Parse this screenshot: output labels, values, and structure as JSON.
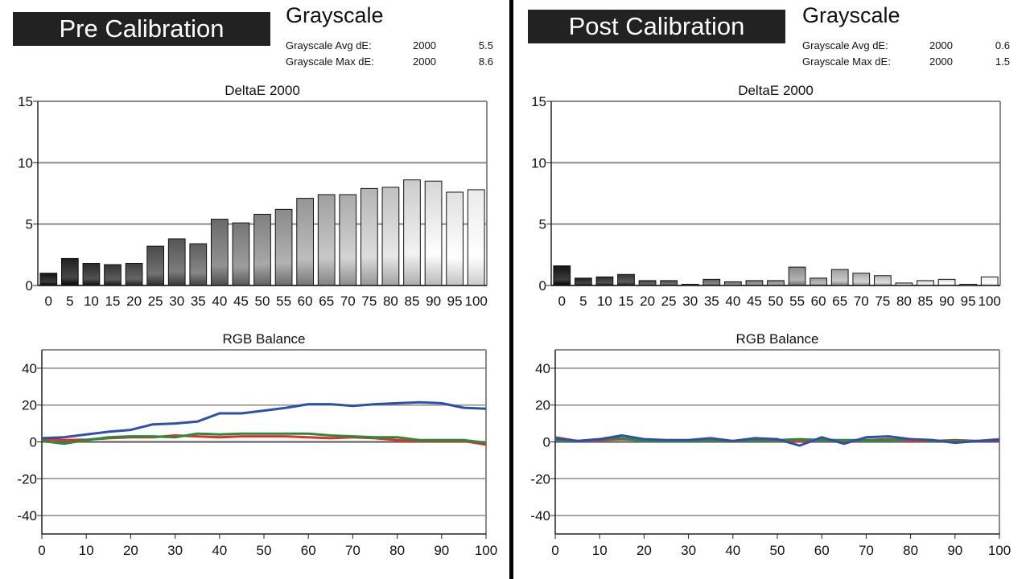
{
  "panels": [
    {
      "banner": "Pre Calibration",
      "stats_title": "Grayscale",
      "stats": [
        {
          "label": "Grayscale Avg dE:",
          "standard": "2000",
          "value": "5.5"
        },
        {
          "label": "Grayscale Max dE:",
          "standard": "2000",
          "value": "8.6"
        }
      ]
    },
    {
      "banner": "Post Calibration",
      "stats_title": "Grayscale",
      "stats": [
        {
          "label": "Grayscale Avg dE:",
          "standard": "2000",
          "value": "0.6"
        },
        {
          "label": "Grayscale Max dE:",
          "standard": "2000",
          "value": "1.5"
        }
      ]
    }
  ],
  "colors": {
    "red": "#e0302a",
    "green": "#2b8a3c",
    "blue": "#2f4fa8",
    "frame": "#8a8a8a",
    "grid": "#8a8a8a"
  },
  "chart_data": [
    {
      "id": "pre-deltae",
      "type": "bar",
      "title": "DeltaE 2000",
      "categories": [
        "0",
        "5",
        "10",
        "15",
        "20",
        "25",
        "30",
        "35",
        "40",
        "45",
        "50",
        "55",
        "60",
        "65",
        "70",
        "75",
        "80",
        "85",
        "90",
        "95",
        "100"
      ],
      "values": [
        1.0,
        2.2,
        1.8,
        1.7,
        1.8,
        3.2,
        3.8,
        3.4,
        5.4,
        5.1,
        5.8,
        6.2,
        7.1,
        7.4,
        7.4,
        7.9,
        8.0,
        8.6,
        8.5,
        7.6,
        7.8
      ],
      "ylim": [
        0,
        15
      ],
      "yticks": [
        0,
        5,
        10,
        15
      ],
      "grid": true
    },
    {
      "id": "post-deltae",
      "type": "bar",
      "title": "DeltaE 2000",
      "categories": [
        "0",
        "5",
        "10",
        "15",
        "20",
        "25",
        "30",
        "35",
        "40",
        "45",
        "50",
        "55",
        "60",
        "65",
        "70",
        "75",
        "80",
        "85",
        "90",
        "95",
        "100"
      ],
      "values": [
        1.6,
        0.6,
        0.7,
        0.9,
        0.4,
        0.4,
        0.1,
        0.5,
        0.3,
        0.4,
        0.4,
        1.5,
        0.6,
        1.3,
        1.0,
        0.8,
        0.2,
        0.4,
        0.5,
        0.1,
        0.7
      ],
      "ylim": [
        0,
        15
      ],
      "yticks": [
        0,
        5,
        10,
        15
      ],
      "grid": true
    },
    {
      "id": "pre-rgb",
      "type": "line",
      "title": "RGB Balance",
      "x": [
        0,
        5,
        10,
        15,
        20,
        25,
        30,
        35,
        40,
        45,
        50,
        55,
        60,
        65,
        70,
        75,
        80,
        85,
        90,
        95,
        100
      ],
      "xticks": [
        0,
        10,
        20,
        30,
        40,
        50,
        60,
        70,
        80,
        90,
        100
      ],
      "yticks": [
        -40,
        -20,
        0,
        20,
        40
      ],
      "ylim": [
        -50,
        50
      ],
      "grid": true,
      "series": [
        {
          "color": "red",
          "values": [
            1.5,
            1.0,
            1.2,
            2.0,
            2.5,
            2.5,
            3.5,
            3.0,
            2.5,
            3.0,
            3.0,
            3.0,
            2.5,
            2.0,
            2.5,
            2.0,
            1.0,
            0.5,
            0.5,
            0.5,
            -1.5
          ]
        },
        {
          "color": "green",
          "values": [
            0.5,
            -1.0,
            1.0,
            2.5,
            3.0,
            3.0,
            2.5,
            4.5,
            4.0,
            4.5,
            4.5,
            4.5,
            4.5,
            3.5,
            3.0,
            2.5,
            2.5,
            1.0,
            1.0,
            1.0,
            -0.5
          ]
        },
        {
          "color": "blue",
          "values": [
            2.0,
            2.5,
            4.0,
            5.5,
            6.5,
            9.5,
            10.0,
            11.0,
            15.5,
            15.5,
            17.0,
            18.5,
            20.5,
            20.5,
            19.5,
            20.5,
            21.0,
            21.5,
            21.0,
            18.5,
            18.0
          ]
        }
      ]
    },
    {
      "id": "post-rgb",
      "type": "line",
      "title": "RGB Balance",
      "x": [
        0,
        5,
        10,
        15,
        20,
        25,
        30,
        35,
        40,
        45,
        50,
        55,
        60,
        65,
        70,
        75,
        80,
        85,
        90,
        95,
        100
      ],
      "xticks": [
        0,
        10,
        20,
        30,
        40,
        50,
        60,
        70,
        80,
        90,
        100
      ],
      "yticks": [
        -40,
        -20,
        0,
        20,
        40
      ],
      "ylim": [
        -50,
        50
      ],
      "grid": true,
      "series": [
        {
          "color": "red",
          "values": [
            2.5,
            0.5,
            1.0,
            1.5,
            1.0,
            0.5,
            0.5,
            1.0,
            0.5,
            1.0,
            1.0,
            0.5,
            1.5,
            0.5,
            1.0,
            1.5,
            0.5,
            0.5,
            1.0,
            0.5,
            0.5
          ]
        },
        {
          "color": "green",
          "values": [
            1.0,
            0.5,
            1.5,
            2.0,
            0.5,
            0.5,
            0.5,
            1.0,
            0.5,
            1.0,
            1.0,
            1.5,
            1.0,
            1.0,
            1.0,
            1.0,
            1.5,
            0.5,
            0.5,
            0.5,
            1.5
          ]
        },
        {
          "color": "blue",
          "values": [
            2.0,
            0.5,
            1.5,
            3.5,
            1.5,
            1.0,
            1.0,
            2.0,
            0.5,
            2.0,
            1.5,
            -2.0,
            2.5,
            -1.0,
            2.5,
            3.0,
            1.5,
            1.0,
            -0.5,
            0.5,
            1.0
          ]
        }
      ]
    }
  ]
}
